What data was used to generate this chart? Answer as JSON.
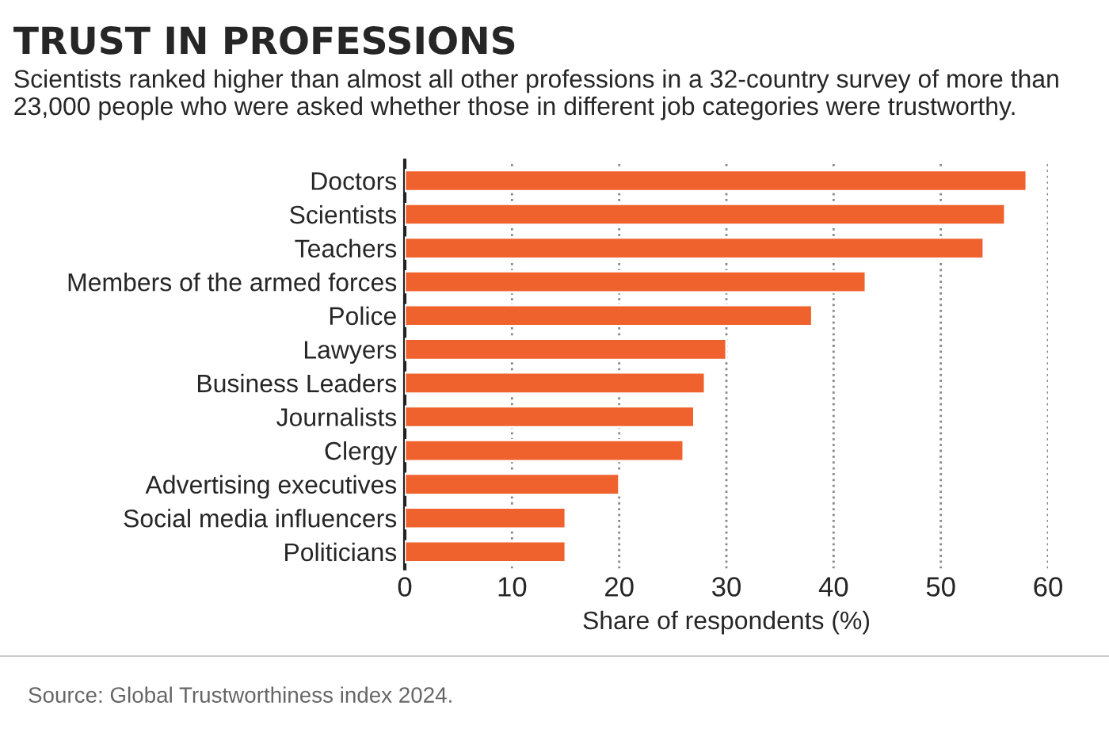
{
  "chart_data": {
    "type": "bar",
    "orientation": "horizontal",
    "title": "TRUST IN PROFESSIONS",
    "subtitle": "Scientists ranked higher than almost all other professions in a 32-country survey of more than 23,000 people who were asked whether those in different job categories were trustworthy.",
    "xlabel": "Share of respondents (%)",
    "categories": [
      "Doctors",
      "Scientists",
      "Teachers",
      "Members of the armed forces",
      "Police",
      "Lawyers",
      "Business Leaders",
      "Journalists",
      "Clergy",
      "Advertising executives",
      "Social media influencers",
      "Politicians"
    ],
    "values": [
      58,
      56,
      54,
      43,
      38,
      30,
      28,
      27,
      26,
      20,
      15,
      15
    ],
    "color": "#f0622d",
    "xlim": [
      0,
      60
    ],
    "xticks": [
      0,
      10,
      20,
      30,
      40,
      50,
      60
    ],
    "grid": "x",
    "line_style": "dotted",
    "annotations": [
      "Source: Global Trustworthiness index 2024."
    ]
  }
}
